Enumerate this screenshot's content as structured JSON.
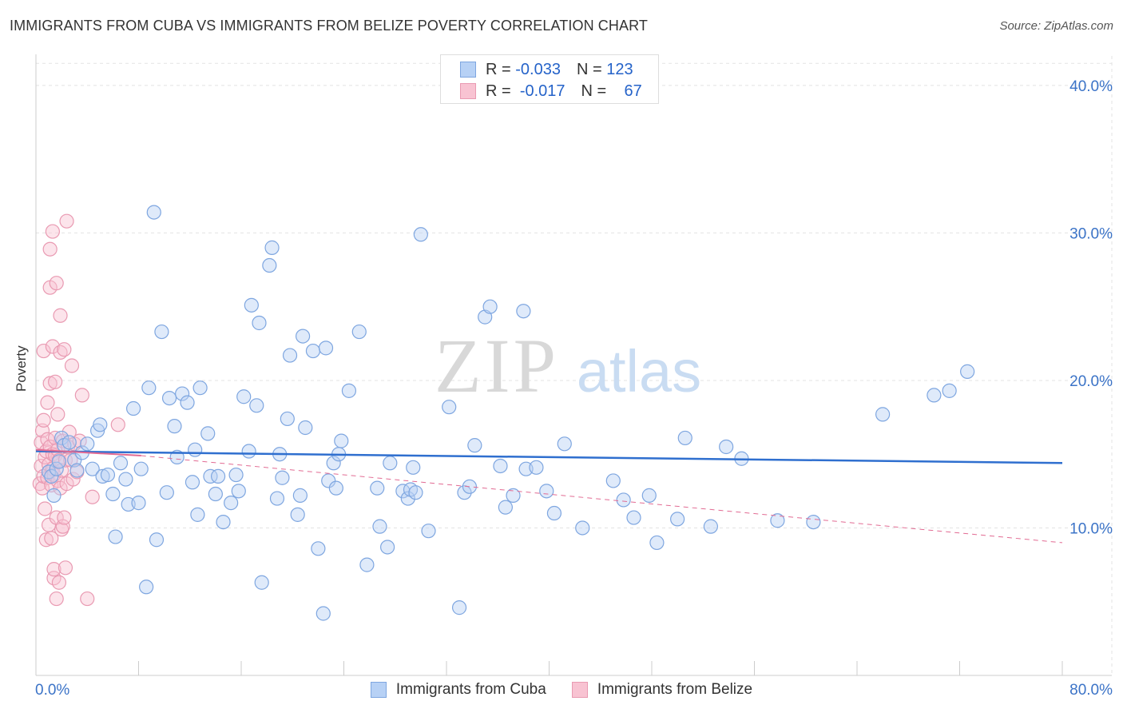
{
  "title": "IMMIGRANTS FROM CUBA VS IMMIGRANTS FROM BELIZE POVERTY CORRELATION CHART",
  "source": "Source: ZipAtlas.com",
  "legend": {
    "r_label": "R =",
    "n_label": "N =",
    "series": [
      {
        "name": "Immigrants from Cuba",
        "r": "-0.033",
        "n": "123"
      },
      {
        "name": "Immigrants from Belize",
        "r": "-0.017",
        "n": "67"
      }
    ]
  },
  "watermark": {
    "zip": "ZIP",
    "atlas": "atlas"
  },
  "colors": {
    "cuba": "#7ea6e0",
    "cuba_fill": "#b7d1f5",
    "cuba_line": "#2f6fcf",
    "belize": "#e99ab2",
    "belize_fill": "#f8c3d2",
    "belize_line": "#e26b93",
    "axis_text": "#3b73c7"
  },
  "chart_data": {
    "type": "scatter",
    "title": "IMMIGRANTS FROM CUBA VS IMMIGRANTS FROM BELIZE POVERTY CORRELATION CHART",
    "xlabel": "",
    "ylabel": "Poverty",
    "xlim": [
      0,
      80
    ],
    "ylim": [
      0,
      42
    ],
    "x_tick_labels": [
      "0.0%",
      "80.0%"
    ],
    "y_ticks": [
      10,
      20,
      30,
      40
    ],
    "y_tick_labels": [
      "10.0%",
      "20.0%",
      "30.0%",
      "40.0%"
    ],
    "grid": true,
    "series": [
      {
        "name": "Immigrants from Cuba",
        "trend": {
          "x": [
            0,
            80
          ],
          "y": [
            15.2,
            14.4
          ],
          "style": "solid"
        },
        "points": [
          [
            1.0,
            13.8
          ],
          [
            1.2,
            13.5
          ],
          [
            1.4,
            12.2
          ],
          [
            1.6,
            14.0
          ],
          [
            1.8,
            14.5
          ],
          [
            2.0,
            16.1
          ],
          [
            2.2,
            15.6
          ],
          [
            2.6,
            15.8
          ],
          [
            3.0,
            14.6
          ],
          [
            3.2,
            13.9
          ],
          [
            3.6,
            15.1
          ],
          [
            4.0,
            15.7
          ],
          [
            4.4,
            14.0
          ],
          [
            4.8,
            16.6
          ],
          [
            5.0,
            17.0
          ],
          [
            5.2,
            13.5
          ],
          [
            5.6,
            13.6
          ],
          [
            6.0,
            12.3
          ],
          [
            6.2,
            9.4
          ],
          [
            6.6,
            14.4
          ],
          [
            7.0,
            13.3
          ],
          [
            7.2,
            11.6
          ],
          [
            7.6,
            18.1
          ],
          [
            8.0,
            11.7
          ],
          [
            8.2,
            14.0
          ],
          [
            8.6,
            6.0
          ],
          [
            8.8,
            19.5
          ],
          [
            9.2,
            31.4
          ],
          [
            9.4,
            9.2
          ],
          [
            9.8,
            23.3
          ],
          [
            10.2,
            12.4
          ],
          [
            10.4,
            18.8
          ],
          [
            10.8,
            16.9
          ],
          [
            11.0,
            14.8
          ],
          [
            11.4,
            19.1
          ],
          [
            11.8,
            18.5
          ],
          [
            12.2,
            13.1
          ],
          [
            12.4,
            15.3
          ],
          [
            12.6,
            10.9
          ],
          [
            12.8,
            19.5
          ],
          [
            13.4,
            16.4
          ],
          [
            13.6,
            13.5
          ],
          [
            14.0,
            12.3
          ],
          [
            14.2,
            13.5
          ],
          [
            14.6,
            10.4
          ],
          [
            15.2,
            11.7
          ],
          [
            15.6,
            13.6
          ],
          [
            15.8,
            12.5
          ],
          [
            16.2,
            18.9
          ],
          [
            16.6,
            15.2
          ],
          [
            16.8,
            25.1
          ],
          [
            17.2,
            18.3
          ],
          [
            17.4,
            23.9
          ],
          [
            17.6,
            6.3
          ],
          [
            18.2,
            27.8
          ],
          [
            18.4,
            29.0
          ],
          [
            18.8,
            12.0
          ],
          [
            19.0,
            15.0
          ],
          [
            19.2,
            13.4
          ],
          [
            19.6,
            17.4
          ],
          [
            19.8,
            21.7
          ],
          [
            20.4,
            10.9
          ],
          [
            20.6,
            12.2
          ],
          [
            20.8,
            23.0
          ],
          [
            21.0,
            16.8
          ],
          [
            21.6,
            22.0
          ],
          [
            22.0,
            8.6
          ],
          [
            22.4,
            4.2
          ],
          [
            22.6,
            22.2
          ],
          [
            22.8,
            13.2
          ],
          [
            23.2,
            14.4
          ],
          [
            23.4,
            12.7
          ],
          [
            23.6,
            15.0
          ],
          [
            23.8,
            15.9
          ],
          [
            24.4,
            19.3
          ],
          [
            25.2,
            23.3
          ],
          [
            25.8,
            7.5
          ],
          [
            26.6,
            12.7
          ],
          [
            26.8,
            10.1
          ],
          [
            27.4,
            8.7
          ],
          [
            27.6,
            14.4
          ],
          [
            28.6,
            12.5
          ],
          [
            29.0,
            12.0
          ],
          [
            29.2,
            12.6
          ],
          [
            29.4,
            14.1
          ],
          [
            29.6,
            12.4
          ],
          [
            30.0,
            29.9
          ],
          [
            30.6,
            9.8
          ],
          [
            32.2,
            18.2
          ],
          [
            33.0,
            4.6
          ],
          [
            33.4,
            12.4
          ],
          [
            33.8,
            12.8
          ],
          [
            34.2,
            15.6
          ],
          [
            35.0,
            24.3
          ],
          [
            35.4,
            25.0
          ],
          [
            36.2,
            14.2
          ],
          [
            36.6,
            11.4
          ],
          [
            37.2,
            12.2
          ],
          [
            38.0,
            24.7
          ],
          [
            38.2,
            14.0
          ],
          [
            39.0,
            14.1
          ],
          [
            39.8,
            12.5
          ],
          [
            40.4,
            11.0
          ],
          [
            41.2,
            15.7
          ],
          [
            42.6,
            10.0
          ],
          [
            45.0,
            13.2
          ],
          [
            45.8,
            11.9
          ],
          [
            46.6,
            10.7
          ],
          [
            47.8,
            12.2
          ],
          [
            48.4,
            9.0
          ],
          [
            50.0,
            10.6
          ],
          [
            50.6,
            16.1
          ],
          [
            52.6,
            10.1
          ],
          [
            53.8,
            15.5
          ],
          [
            55.0,
            14.7
          ],
          [
            57.8,
            10.5
          ],
          [
            60.6,
            10.4
          ],
          [
            66.0,
            17.7
          ],
          [
            70.0,
            19.0
          ],
          [
            71.2,
            19.3
          ],
          [
            72.6,
            20.6
          ]
        ]
      },
      {
        "name": "Immigrants from Belize",
        "trend": {
          "x": [
            0,
            8.2,
            80
          ],
          "y": [
            15.3,
            14.9,
            9.0
          ],
          "style": "solid-then-dashed"
        },
        "points": [
          [
            0.3,
            13.0
          ],
          [
            0.4,
            14.2
          ],
          [
            0.4,
            15.8
          ],
          [
            0.5,
            12.7
          ],
          [
            0.5,
            16.6
          ],
          [
            0.6,
            13.5
          ],
          [
            0.6,
            17.3
          ],
          [
            0.6,
            22.0
          ],
          [
            0.7,
            11.3
          ],
          [
            0.7,
            14.8
          ],
          [
            0.8,
            9.2
          ],
          [
            0.8,
            15.2
          ],
          [
            0.9,
            13.4
          ],
          [
            0.9,
            16.0
          ],
          [
            0.9,
            18.5
          ],
          [
            1.0,
            10.2
          ],
          [
            1.0,
            13.8
          ],
          [
            1.0,
            14.3
          ],
          [
            1.1,
            15.5
          ],
          [
            1.1,
            19.8
          ],
          [
            1.1,
            26.3
          ],
          [
            1.1,
            28.9
          ],
          [
            1.2,
            9.3
          ],
          [
            1.2,
            12.9
          ],
          [
            1.3,
            14.0
          ],
          [
            1.3,
            15.0
          ],
          [
            1.3,
            22.3
          ],
          [
            1.3,
            30.1
          ],
          [
            1.4,
            6.6
          ],
          [
            1.4,
            7.2
          ],
          [
            1.4,
            13.6
          ],
          [
            1.5,
            14.9
          ],
          [
            1.5,
            16.1
          ],
          [
            1.5,
            19.9
          ],
          [
            1.6,
            26.6
          ],
          [
            1.6,
            5.2
          ],
          [
            1.6,
            10.7
          ],
          [
            1.7,
            13.2
          ],
          [
            1.7,
            15.3
          ],
          [
            1.7,
            17.7
          ],
          [
            1.8,
            6.3
          ],
          [
            1.8,
            14.6
          ],
          [
            1.9,
            12.7
          ],
          [
            1.9,
            21.9
          ],
          [
            1.9,
            24.4
          ],
          [
            2.0,
            9.9
          ],
          [
            2.0,
            13.9
          ],
          [
            2.1,
            10.1
          ],
          [
            2.1,
            15.9
          ],
          [
            2.2,
            10.7
          ],
          [
            2.2,
            22.1
          ],
          [
            2.3,
            7.3
          ],
          [
            2.3,
            14.6
          ],
          [
            2.4,
            30.8
          ],
          [
            2.4,
            13.0
          ],
          [
            2.5,
            15.5
          ],
          [
            2.6,
            16.5
          ],
          [
            2.7,
            14.6
          ],
          [
            2.8,
            21.0
          ],
          [
            2.9,
            13.3
          ],
          [
            3.0,
            15.7
          ],
          [
            3.2,
            13.8
          ],
          [
            3.4,
            15.9
          ],
          [
            3.6,
            19.0
          ],
          [
            4.0,
            5.2
          ],
          [
            4.4,
            12.1
          ],
          [
            6.4,
            17.0
          ]
        ]
      }
    ]
  }
}
